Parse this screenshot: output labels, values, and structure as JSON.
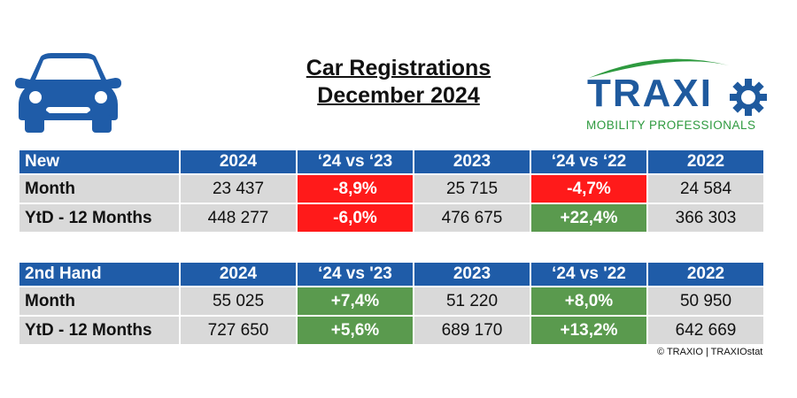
{
  "title": {
    "line1": "Car Registrations",
    "line2": "December 2024"
  },
  "logo": {
    "word": "TRAXI",
    "tagline": "MOBILITY PROFESSIONALS"
  },
  "colors": {
    "header_blue": "#1f5ca8",
    "negative_red": "#ff1a1a",
    "positive_green": "#5a9a4e",
    "cell_grey": "#d9d9d9"
  },
  "new": {
    "headers": [
      "New",
      "2024",
      "‘24 vs ‘23",
      "2023",
      "‘24 vs ‘22",
      "2022"
    ],
    "rows": [
      [
        "Month",
        "23 437",
        "-8,9%",
        "25 715",
        "-4,7%",
        "24 584"
      ],
      [
        "YtD - 12 Months",
        "448 277",
        "-6,0%",
        "476 675",
        "+22,4%",
        "366 303"
      ]
    ]
  },
  "second_hand": {
    "headers": [
      "2nd Hand",
      "2024",
      "‘24 vs '23",
      "2023",
      "‘24 vs '22",
      "2022"
    ],
    "rows": [
      [
        "Month",
        "55 025",
        "+7,4%",
        "51 220",
        "+8,0%",
        "50 950"
      ],
      [
        "YtD - 12 Months",
        "727 650",
        "+5,6%",
        "689 170",
        "+13,2%",
        "642 669"
      ]
    ]
  },
  "copyright": "© TRAXIO | TRAXIOstat"
}
